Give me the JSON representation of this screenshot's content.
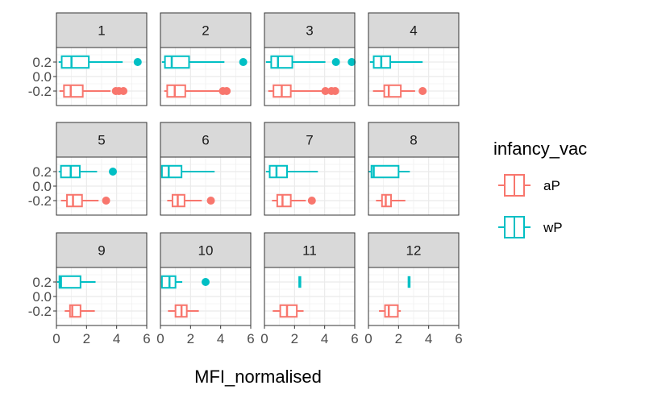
{
  "chart_data": {
    "type": "boxplot",
    "facet_wrap": {
      "ncol": 4,
      "nrow": 3
    },
    "xlabel": "MFI_normalised",
    "ylabel": "",
    "xlim": [
      0,
      6
    ],
    "x_ticks": [
      "0",
      "2",
      "4",
      "6"
    ],
    "ylim": [
      -0.4,
      0.4
    ],
    "y_ticks": [
      "0.2",
      "0.0",
      "-0.2"
    ],
    "y_tick_values": [
      0.2,
      0.0,
      -0.2
    ],
    "series_offsets": {
      "aP": -0.2,
      "wP": 0.2
    },
    "legend": {
      "title": "infancy_vac",
      "position": "right",
      "entries": [
        {
          "name": "aP",
          "color": "#F8766D"
        },
        {
          "name": "wP",
          "color": "#00BFC4"
        }
      ]
    },
    "colors": {
      "aP": "#F8766D",
      "wP": "#00BFC4",
      "strip_bg": "#D9D9D9",
      "panel_border": "#333333"
    },
    "panels": [
      {
        "label": "1",
        "wP": {
          "lower_whisker": 0.15,
          "q1": 0.35,
          "median": 1.0,
          "q3": 2.15,
          "upper_whisker": 4.4,
          "outliers": [
            5.4
          ]
        },
        "aP": {
          "lower_whisker": 0.2,
          "q1": 0.5,
          "median": 0.95,
          "q3": 1.75,
          "upper_whisker": 3.6,
          "outliers": [
            3.95,
            4.15,
            4.45
          ]
        }
      },
      {
        "label": "2",
        "wP": {
          "lower_whisker": 0.1,
          "q1": 0.3,
          "median": 0.75,
          "q3": 1.9,
          "upper_whisker": 4.25,
          "outliers": [
            5.5
          ]
        },
        "aP": {
          "lower_whisker": 0.25,
          "q1": 0.45,
          "median": 0.95,
          "q3": 1.65,
          "upper_whisker": 3.95,
          "outliers": [
            4.15,
            4.4
          ]
        }
      },
      {
        "label": "3",
        "wP": {
          "lower_whisker": 0.1,
          "q1": 0.45,
          "median": 0.9,
          "q3": 1.85,
          "upper_whisker": 4.05,
          "outliers": [
            4.75,
            5.8
          ]
        },
        "aP": {
          "lower_whisker": 0.25,
          "q1": 0.6,
          "median": 1.15,
          "q3": 1.75,
          "upper_whisker": 3.85,
          "outliers": [
            4.05,
            4.45,
            4.7
          ]
        }
      },
      {
        "label": "4",
        "wP": {
          "lower_whisker": 0.1,
          "q1": 0.35,
          "median": 0.85,
          "q3": 1.45,
          "upper_whisker": 3.6,
          "outliers": []
        },
        "aP": {
          "lower_whisker": 0.3,
          "q1": 1.05,
          "median": 1.35,
          "q3": 2.15,
          "upper_whisker": 3.1,
          "outliers": [
            3.6
          ]
        }
      },
      {
        "label": "5",
        "wP": {
          "lower_whisker": 0.15,
          "q1": 0.3,
          "median": 0.95,
          "q3": 1.55,
          "upper_whisker": 2.7,
          "outliers": [
            3.75
          ]
        },
        "aP": {
          "lower_whisker": 0.3,
          "q1": 0.7,
          "median": 1.1,
          "q3": 1.7,
          "upper_whisker": 2.8,
          "outliers": [
            3.3
          ]
        }
      },
      {
        "label": "6",
        "wP": {
          "lower_whisker": 0.1,
          "q1": 0.1,
          "median": 0.55,
          "q3": 1.4,
          "upper_whisker": 3.6,
          "outliers": []
        },
        "aP": {
          "lower_whisker": 0.45,
          "q1": 0.8,
          "median": 1.15,
          "q3": 1.6,
          "upper_whisker": 2.75,
          "outliers": [
            3.35
          ]
        }
      },
      {
        "label": "7",
        "wP": {
          "lower_whisker": 0.1,
          "q1": 0.35,
          "median": 0.8,
          "q3": 1.5,
          "upper_whisker": 3.55,
          "outliers": []
        },
        "aP": {
          "lower_whisker": 0.5,
          "q1": 0.85,
          "median": 1.2,
          "q3": 1.75,
          "upper_whisker": 2.75,
          "outliers": [
            3.15
          ]
        }
      },
      {
        "label": "8",
        "wP": {
          "lower_whisker": 0.0,
          "q1": 0.2,
          "median": 0.35,
          "q3": 2.0,
          "upper_whisker": 2.75,
          "outliers": []
        },
        "aP": {
          "lower_whisker": 0.5,
          "q1": 0.9,
          "median": 1.15,
          "q3": 1.5,
          "upper_whisker": 2.45,
          "outliers": []
        }
      },
      {
        "label": "9",
        "wP": {
          "lower_whisker": 0.05,
          "q1": 0.2,
          "median": 0.3,
          "q3": 1.6,
          "upper_whisker": 2.6,
          "outliers": []
        },
        "aP": {
          "lower_whisker": 0.55,
          "q1": 0.9,
          "median": 1.05,
          "q3": 1.6,
          "upper_whisker": 2.55,
          "outliers": []
        }
      },
      {
        "label": "10",
        "wP": {
          "lower_whisker": 0.05,
          "q1": 0.1,
          "median": 0.6,
          "q3": 1.0,
          "upper_whisker": 1.45,
          "outliers": [
            3.0
          ]
        },
        "aP": {
          "lower_whisker": 0.5,
          "q1": 1.0,
          "median": 1.4,
          "q3": 1.75,
          "upper_whisker": 2.55,
          "outliers": []
        }
      },
      {
        "label": "11",
        "wP": {
          "lower_whisker": 2.35,
          "q1": 2.35,
          "median": 2.35,
          "q3": 2.35,
          "upper_whisker": 2.35,
          "outliers": []
        },
        "aP": {
          "lower_whisker": 0.55,
          "q1": 1.05,
          "median": 1.5,
          "q3": 2.15,
          "upper_whisker": 2.6,
          "outliers": []
        }
      },
      {
        "label": "12",
        "wP": {
          "lower_whisker": 2.7,
          "q1": 2.7,
          "median": 2.7,
          "q3": 2.7,
          "upper_whisker": 2.7,
          "outliers": []
        },
        "aP": {
          "lower_whisker": 0.7,
          "q1": 1.1,
          "median": 1.35,
          "q3": 1.95,
          "upper_whisker": 2.15,
          "outliers": []
        }
      }
    ]
  }
}
